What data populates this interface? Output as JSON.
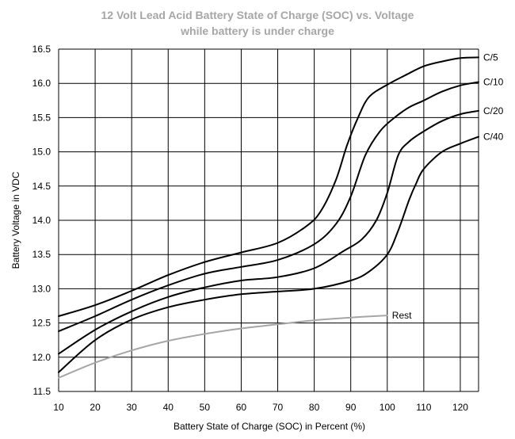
{
  "chart_data": {
    "type": "line",
    "title": [
      "12 Volt Lead Acid Battery State of Charge (SOC) vs. Voltage",
      "while battery is under charge"
    ],
    "xlabel": "Battery State of Charge (SOC) in Percent (%)",
    "ylabel": "Battery Voltage in VDC",
    "xlim": [
      10,
      125
    ],
    "ylim": [
      11.5,
      16.5
    ],
    "xticks": [
      10,
      20,
      30,
      40,
      50,
      60,
      70,
      80,
      90,
      100,
      110,
      120
    ],
    "yticks": [
      11.5,
      12.0,
      12.5,
      13.0,
      13.5,
      14.0,
      14.5,
      15.0,
      15.5,
      16.0,
      16.5
    ],
    "ytick_labels": [
      "11.5",
      "12.0",
      "12.5",
      "13.0",
      "13.5",
      "14.0",
      "14.5",
      "15.0",
      "15.5",
      "16.0",
      "16.5"
    ],
    "grid": true,
    "series": [
      {
        "name": "C/5",
        "color": "#000000",
        "x": [
          10,
          20,
          30,
          40,
          50,
          60,
          70,
          78,
          82,
          86,
          89,
          92,
          95,
          100,
          105,
          110,
          115,
          120,
          125
        ],
        "y": [
          12.6,
          12.76,
          12.97,
          13.2,
          13.39,
          13.53,
          13.67,
          13.92,
          14.15,
          14.6,
          15.1,
          15.5,
          15.8,
          15.98,
          16.12,
          16.25,
          16.32,
          16.37,
          16.38
        ]
      },
      {
        "name": "C/10",
        "color": "#000000",
        "x": [
          10,
          20,
          30,
          40,
          50,
          60,
          70,
          80,
          86,
          90,
          94,
          98,
          102,
          106,
          110,
          115,
          120,
          125
        ],
        "y": [
          12.38,
          12.6,
          12.84,
          13.05,
          13.22,
          13.32,
          13.42,
          13.65,
          13.95,
          14.35,
          14.95,
          15.3,
          15.5,
          15.65,
          15.75,
          15.88,
          15.97,
          16.02
        ]
      },
      {
        "name": "C/20",
        "color": "#000000",
        "x": [
          10,
          20,
          30,
          40,
          50,
          60,
          70,
          80,
          88,
          93,
          97,
          100,
          103,
          106,
          110,
          115,
          120,
          125
        ],
        "y": [
          12.05,
          12.4,
          12.67,
          12.88,
          13.02,
          13.12,
          13.17,
          13.3,
          13.55,
          13.72,
          14.0,
          14.4,
          14.95,
          15.15,
          15.3,
          15.45,
          15.55,
          15.6
        ]
      },
      {
        "name": "C/40",
        "color": "#000000",
        "x": [
          10,
          20,
          30,
          40,
          50,
          60,
          70,
          80,
          90,
          95,
          100,
          103,
          106,
          108,
          110,
          115,
          120,
          125
        ],
        "y": [
          11.78,
          12.25,
          12.55,
          12.73,
          12.84,
          12.92,
          12.96,
          13.0,
          13.12,
          13.25,
          13.5,
          13.85,
          14.3,
          14.55,
          14.75,
          15.0,
          15.12,
          15.22
        ]
      },
      {
        "name": "Rest",
        "color": "#a6a6a6",
        "x": [
          10,
          20,
          30,
          40,
          50,
          60,
          70,
          80,
          90,
          100
        ],
        "y": [
          11.7,
          11.92,
          12.1,
          12.24,
          12.34,
          12.42,
          12.48,
          12.54,
          12.58,
          12.61
        ]
      }
    ]
  }
}
